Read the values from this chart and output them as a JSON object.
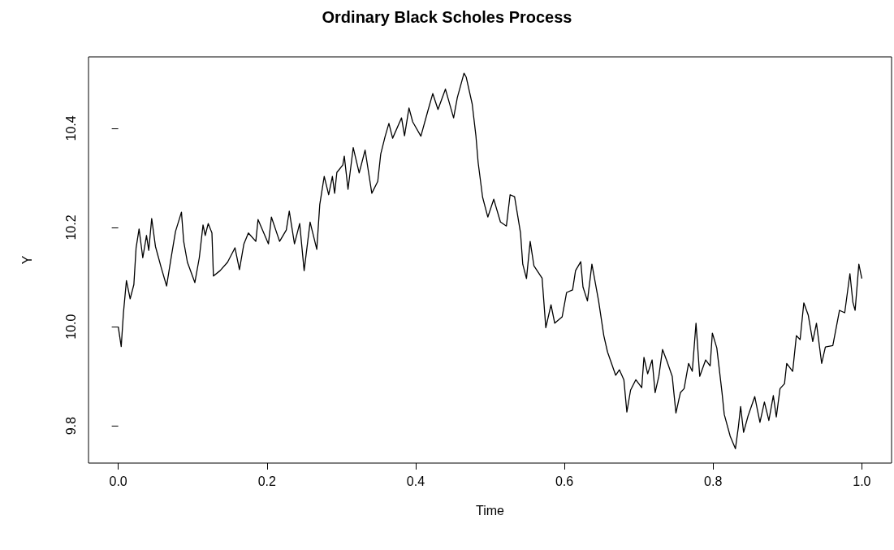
{
  "chart_data": {
    "type": "line",
    "title": "Ordinary Black Scholes Process",
    "xlabel": "Time",
    "ylabel": "Y",
    "x": [
      0,
      0.004,
      0.007,
      0.011,
      0.016,
      0.021,
      0.024,
      0.028,
      0.033,
      0.038,
      0.041,
      0.045,
      0.05,
      0.058,
      0.065,
      0.071,
      0.077,
      0.085,
      0.088,
      0.093,
      0.103,
      0.109,
      0.114,
      0.117,
      0.121,
      0.126,
      0.128,
      0.137,
      0.147,
      0.157,
      0.163,
      0.169,
      0.175,
      0.185,
      0.188,
      0.202,
      0.206,
      0.217,
      0.226,
      0.23,
      0.237,
      0.244,
      0.25,
      0.258,
      0.267,
      0.271,
      0.277,
      0.283,
      0.288,
      0.291,
      0.294,
      0.302,
      0.304,
      0.309,
      0.316,
      0.324,
      0.332,
      0.341,
      0.349,
      0.353,
      0.359,
      0.364,
      0.369,
      0.381,
      0.385,
      0.391,
      0.396,
      0.407,
      0.416,
      0.423,
      0.43,
      0.44,
      0.451,
      0.456,
      0.465,
      0.468,
      0.476,
      0.481,
      0.484,
      0.49,
      0.497,
      0.505,
      0.514,
      0.522,
      0.527,
      0.533,
      0.541,
      0.544,
      0.549,
      0.554,
      0.559,
      0.57,
      0.575,
      0.582,
      0.587,
      0.597,
      0.603,
      0.611,
      0.615,
      0.622,
      0.625,
      0.631,
      0.637,
      0.646,
      0.653,
      0.658,
      0.669,
      0.674,
      0.68,
      0.684,
      0.689,
      0.696,
      0.704,
      0.707,
      0.712,
      0.718,
      0.722,
      0.727,
      0.732,
      0.738,
      0.745,
      0.75,
      0.756,
      0.761,
      0.767,
      0.772,
      0.777,
      0.782,
      0.79,
      0.796,
      0.799,
      0.805,
      0.812,
      0.815,
      0.823,
      0.83,
      0.834,
      0.837,
      0.841,
      0.847,
      0.856,
      0.863,
      0.869,
      0.875,
      0.881,
      0.885,
      0.89,
      0.896,
      0.899,
      0.907,
      0.912,
      0.917,
      0.922,
      0.928,
      0.934,
      0.939,
      0.946,
      0.951,
      0.961,
      0.97,
      0.977,
      0.984,
      0.988,
      0.991,
      0.996,
      1.0
    ],
    "series": [
      {
        "color": "#000000",
        "values": [
          10.0,
          9.96,
          10.028,
          10.093,
          10.056,
          10.085,
          10.159,
          10.197,
          10.139,
          10.184,
          10.154,
          10.218,
          10.162,
          10.118,
          10.082,
          10.138,
          10.192,
          10.231,
          10.172,
          10.13,
          10.089,
          10.139,
          10.205,
          10.184,
          10.208,
          10.189,
          10.102,
          10.113,
          10.13,
          10.159,
          10.115,
          10.167,
          10.189,
          10.172,
          10.216,
          10.167,
          10.221,
          10.172,
          10.195,
          10.233,
          10.167,
          10.208,
          10.113,
          10.211,
          10.156,
          10.246,
          10.303,
          10.266,
          10.303,
          10.269,
          10.311,
          10.326,
          10.344,
          10.277,
          10.361,
          10.31,
          10.356,
          10.269,
          10.293,
          10.348,
          10.384,
          10.41,
          10.38,
          10.421,
          10.385,
          10.441,
          10.413,
          10.384,
          10.433,
          10.47,
          10.438,
          10.479,
          10.421,
          10.462,
          10.511,
          10.503,
          10.449,
          10.385,
          10.331,
          10.261,
          10.221,
          10.257,
          10.211,
          10.203,
          10.266,
          10.262,
          10.189,
          10.126,
          10.097,
          10.172,
          10.123,
          10.098,
          9.998,
          10.044,
          10.007,
          10.02,
          10.069,
          10.074,
          10.113,
          10.131,
          10.08,
          10.052,
          10.126,
          10.052,
          9.982,
          9.949,
          9.902,
          9.913,
          9.893,
          9.828,
          9.872,
          9.893,
          9.877,
          9.938,
          9.905,
          9.933,
          9.867,
          9.9,
          9.954,
          9.93,
          9.9,
          9.826,
          9.867,
          9.875,
          9.926,
          9.91,
          10.007,
          9.9,
          9.933,
          9.921,
          9.987,
          9.957,
          9.867,
          9.823,
          9.779,
          9.754,
          9.798,
          9.839,
          9.787,
          9.82,
          9.859,
          9.807,
          9.848,
          9.811,
          9.861,
          9.818,
          9.875,
          9.885,
          9.926,
          9.91,
          9.982,
          9.974,
          10.048,
          10.023,
          9.97,
          10.007,
          9.926,
          9.959,
          9.962,
          10.033,
          10.028,
          10.107,
          10.049,
          10.033,
          10.126,
          10.097
        ]
      }
    ],
    "xlim": [
      -0.04,
      1.04
    ],
    "xticks": [
      {
        "value": 0,
        "label": "0.0"
      },
      {
        "value": 0.2,
        "label": "0.2"
      },
      {
        "value": 0.4,
        "label": "0.4"
      },
      {
        "value": 0.6,
        "label": "0.6"
      },
      {
        "value": 0.8,
        "label": "0.8"
      },
      {
        "value": 1,
        "label": "1.0"
      }
    ],
    "ylim": [
      9.725,
      10.544
    ],
    "yticks": [
      {
        "value": 9.8,
        "label": "9.8"
      },
      {
        "value": 10,
        "label": "10.0"
      },
      {
        "value": 10.2,
        "label": "10.2"
      },
      {
        "value": 10.4,
        "label": "10.4"
      }
    ],
    "marker": "none",
    "line_style": "solid"
  }
}
